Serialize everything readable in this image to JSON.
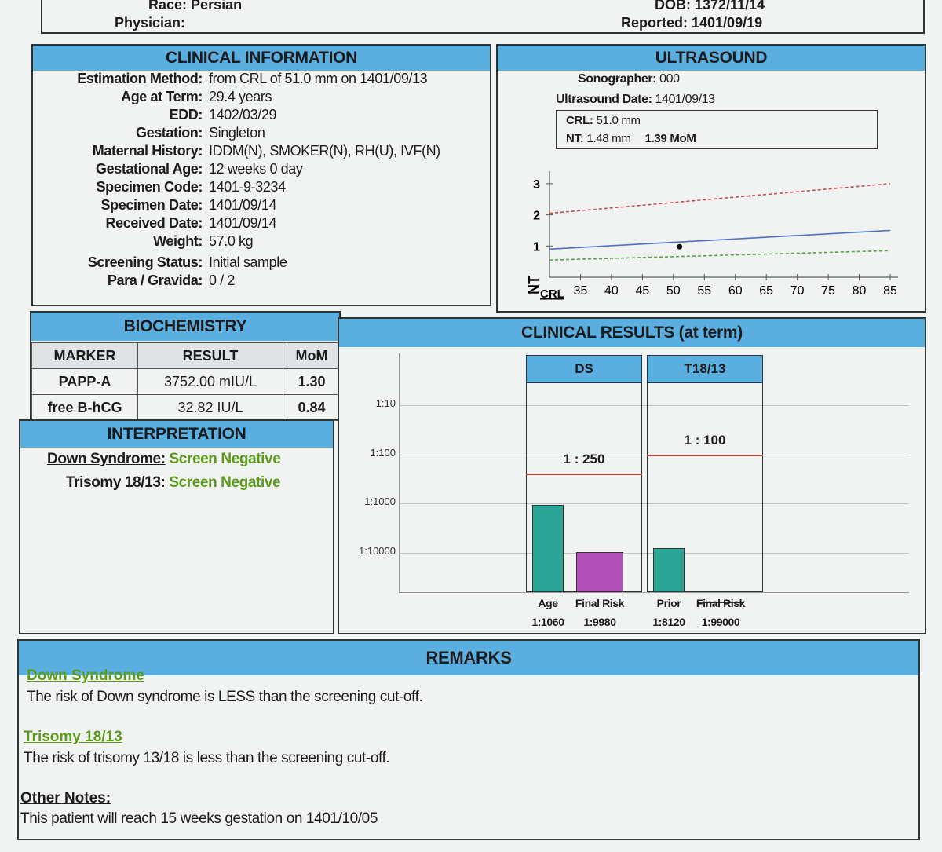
{
  "patient": {
    "race_label": "Race:",
    "race": "Persian",
    "physician_label": "Physician:",
    "physician": "",
    "dob_label": "DOB:",
    "dob": "1372/11/14",
    "reported_label": "Reported:",
    "reported": "1401/09/19"
  },
  "clinical": {
    "title": "CLINICAL INFORMATION",
    "fields": [
      {
        "label": "Estimation Method:",
        "value": "from CRL of 51.0 mm on 1401/09/13"
      },
      {
        "label": "Age at Term:",
        "value": "29.4 years"
      },
      {
        "label": "EDD:",
        "value": "1402/03/29"
      },
      {
        "label": "Gestation:",
        "value": "Singleton"
      },
      {
        "label": "Maternal History:",
        "value": "IDDM(N), SMOKER(N), RH(U), IVF(N)"
      },
      {
        "label": "Gestational Age:",
        "value": "12 weeks 0 day"
      },
      {
        "label": "Specimen Code:",
        "value": "1401-9-3234"
      },
      {
        "label": "Specimen Date:",
        "value": "1401/09/14"
      },
      {
        "label": "Received Date:",
        "value": "1401/09/14"
      },
      {
        "label": "Weight:",
        "value": "57.0 kg"
      },
      {
        "label": "Screening Status:",
        "value": "Initial sample"
      },
      {
        "label": "Para / Gravida:",
        "value": "0 / 2"
      }
    ]
  },
  "ultrasound": {
    "title": "ULTRASOUND",
    "sonographer_label": "Sonographer:",
    "sonographer": "000",
    "date_label": "Ultrasound Date:",
    "date": "1401/09/13",
    "crl_label": "CRL:",
    "crl": "51.0 mm",
    "nt_label": "NT:",
    "nt": "1.48 mm",
    "nt_mom": "1.39 MoM",
    "chart_data": {
      "type": "line",
      "xlabel": "CRL",
      "ylabel": "NT",
      "x_ticks": [
        35,
        40,
        45,
        50,
        55,
        60,
        65,
        70,
        75,
        80,
        85
      ],
      "y_ticks": [
        1,
        2,
        3
      ],
      "xlim": [
        30,
        85
      ],
      "ylim": [
        0,
        3.4
      ],
      "series": [
        {
          "style": "dashed",
          "color": "#cc4b4b",
          "x": [
            30,
            85
          ],
          "y": [
            2.05,
            3.0
          ]
        },
        {
          "style": "solid",
          "color": "#4d72c4",
          "x": [
            30,
            85
          ],
          "y": [
            0.9,
            1.5
          ]
        },
        {
          "style": "dashed",
          "color": "#4fa83d",
          "x": [
            30,
            85
          ],
          "y": [
            0.55,
            0.85
          ]
        }
      ],
      "points": [
        {
          "x": 51.0,
          "y": 1.48
        }
      ]
    }
  },
  "biochem": {
    "title": "BIOCHEMISTRY",
    "headers": [
      "MARKER",
      "RESULT",
      "MoM"
    ],
    "rows": [
      {
        "marker": "PAPP-A",
        "result": "3752.00 mIU/L",
        "mom": "1.30"
      },
      {
        "marker": "free B-hCG",
        "result": "32.82 IU/L",
        "mom": "0.84"
      }
    ]
  },
  "interpretation": {
    "title": "INTERPRETATION",
    "items": [
      {
        "label": "Down Syndrome:",
        "value": "Screen Negative"
      },
      {
        "label": "Trisomy 18/13:",
        "value": "Screen Negative"
      }
    ]
  },
  "results": {
    "title": "CLINICAL RESULTS (at term)",
    "chart_data": {
      "type": "bar",
      "y_scale": "log-risk",
      "y_ticks": [
        "1:10",
        "1:100",
        "1:1000",
        "1:10000"
      ],
      "groups": [
        {
          "name": "DS",
          "cutoff": "1 : 250",
          "bars": [
            {
              "label": "Age",
              "risk": "1:1060",
              "value": 1060,
              "color": "#2aa596"
            },
            {
              "label": "Final Risk",
              "risk": "1:9980",
              "value": 9980,
              "color": "#b34fb8"
            }
          ]
        },
        {
          "name": "T18/13",
          "cutoff": "1 : 100",
          "bars": [
            {
              "label": "Prior",
              "risk": "1:8120",
              "value": 8120,
              "color": "#2aa596"
            },
            {
              "label": "Final Risk",
              "risk": "1:99000",
              "value": 99000,
              "color": "#b34fb8"
            }
          ]
        }
      ]
    }
  },
  "remarks": {
    "title": "REMARKS",
    "ds_heading": "Down Syndrome",
    "ds_text": "The risk of Down syndrome is LESS than the screening cut-off.",
    "t18_heading": "Trisomy 18/13",
    "t18_text": "The risk of trisomy 13/18 is less than the screening cut-off.",
    "notes_heading": "Other Notes:",
    "notes_text": "This patient will reach 15 weeks gestation on 1401/10/05"
  }
}
